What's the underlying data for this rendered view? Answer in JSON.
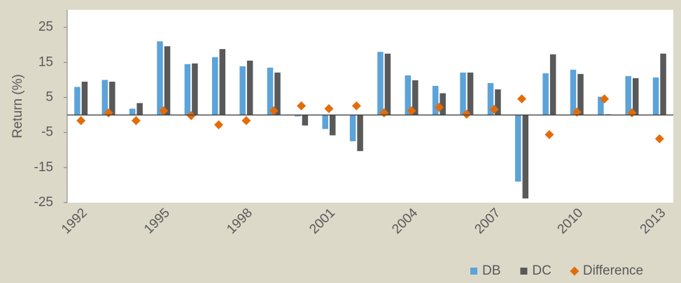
{
  "chart_data": {
    "type": "bar",
    "y_label": "Return (%)",
    "categories": [
      "1992",
      null,
      null,
      "1995",
      null,
      null,
      "1998",
      null,
      null,
      "2001",
      null,
      null,
      "2004",
      null,
      null,
      "2007",
      null,
      null,
      "2010",
      null,
      null,
      "2013"
    ],
    "series": [
      {
        "name": "DB",
        "color": "#5ba3d9",
        "values": [
          8,
          10,
          1.8,
          21,
          14.5,
          16.5,
          13.9,
          13.5,
          -0.4,
          -4,
          -7.5,
          18,
          11.3,
          8.3,
          12.1,
          9.1,
          -19,
          11.9,
          12.9,
          5.2,
          11.1,
          10.7
        ]
      },
      {
        "name": "DC",
        "color": "#595959",
        "values": [
          9.5,
          9.5,
          3.4,
          19.6,
          14.7,
          18.8,
          15.5,
          12.1,
          -3,
          -5.8,
          -10.3,
          17.5,
          9.9,
          6.2,
          12.1,
          7.3,
          -23.8,
          17.3,
          11.7,
          0.2,
          10.5,
          17.5
        ]
      },
      {
        "name": "Difference",
        "type": "scatter",
        "marker": "diamond",
        "color": "#e36c0a",
        "values": [
          -1.6,
          0.6,
          -1.6,
          1.2,
          -0.2,
          -2.8,
          -1.6,
          1.2,
          2.6,
          1.8,
          2.6,
          0.6,
          1.2,
          2.2,
          0.2,
          1.6,
          4.6,
          -5.6,
          0.8,
          4.6,
          0.6,
          -6.8
        ]
      }
    ],
    "ylim": [
      -25,
      30
    ],
    "yticks": [
      -25,
      -15,
      -5,
      5,
      15,
      25
    ],
    "legend": "bottom-right"
  }
}
